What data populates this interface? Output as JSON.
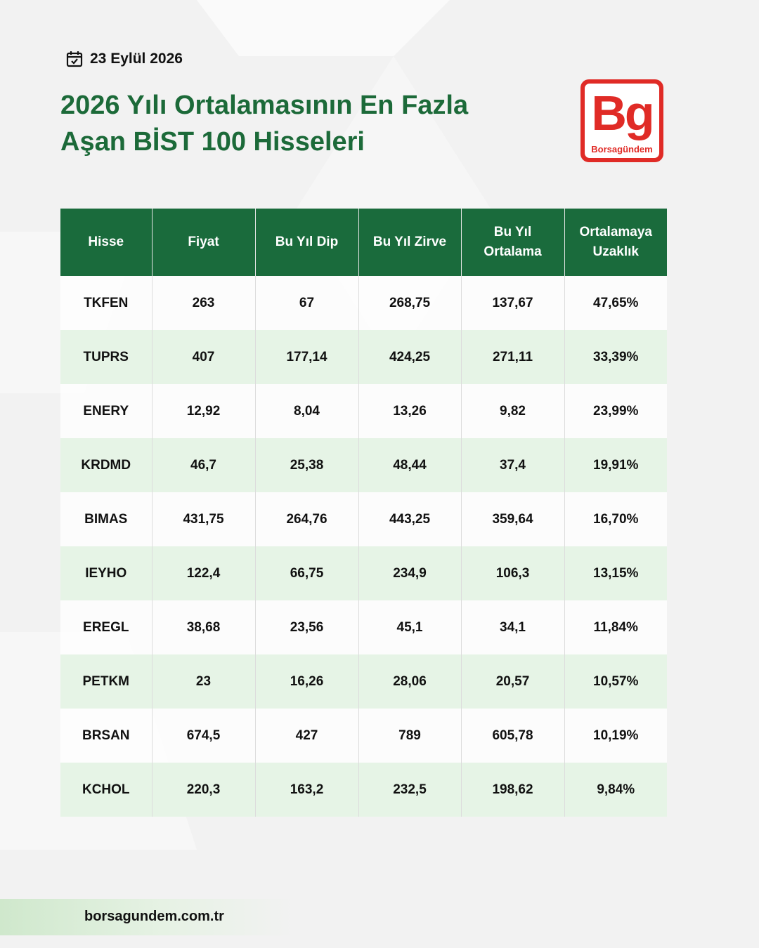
{
  "header": {
    "date": "23 Eylül 2026",
    "title_lines": [
      "2026 Yılı Ortalamasının En Fazla",
      "Aşan BİST 100 Hisseleri"
    ]
  },
  "logo": {
    "mark": "Bg",
    "name": "Borsagündem"
  },
  "table": {
    "columns": [
      [
        "Hisse"
      ],
      [
        "Fiyat"
      ],
      [
        "Bu Yıl Dip"
      ],
      [
        "Bu Yıl Zirve"
      ],
      [
        "Bu Yıl",
        "Ortalama"
      ],
      [
        "Ortalamaya",
        "Uzaklık"
      ]
    ],
    "rows": [
      [
        "TKFEN",
        "263",
        "67",
        "268,75",
        "137,67",
        "47,65%"
      ],
      [
        "TUPRS",
        "407",
        "177,14",
        "424,25",
        "271,11",
        "33,39%"
      ],
      [
        "ENERY",
        "12,92",
        "8,04",
        "13,26",
        "9,82",
        "23,99%"
      ],
      [
        "KRDMD",
        "46,7",
        "25,38",
        "48,44",
        "37,4",
        "19,91%"
      ],
      [
        "BIMAS",
        "431,75",
        "264,76",
        "443,25",
        "359,64",
        "16,70%"
      ],
      [
        "IEYHO",
        "122,4",
        "66,75",
        "234,9",
        "106,3",
        "13,15%"
      ],
      [
        "EREGL",
        "38,68",
        "23,56",
        "45,1",
        "34,1",
        "11,84%"
      ],
      [
        "PETKM",
        "23",
        "16,26",
        "28,06",
        "20,57",
        "10,57%"
      ],
      [
        "BRSAN",
        "674,5",
        "427",
        "789",
        "605,78",
        "10,19%"
      ],
      [
        "KCHOL",
        "220,3",
        "163,2",
        "232,5",
        "198,62",
        "9,84%"
      ]
    ]
  },
  "footer": {
    "url": "borsagundem.com.tr"
  }
}
